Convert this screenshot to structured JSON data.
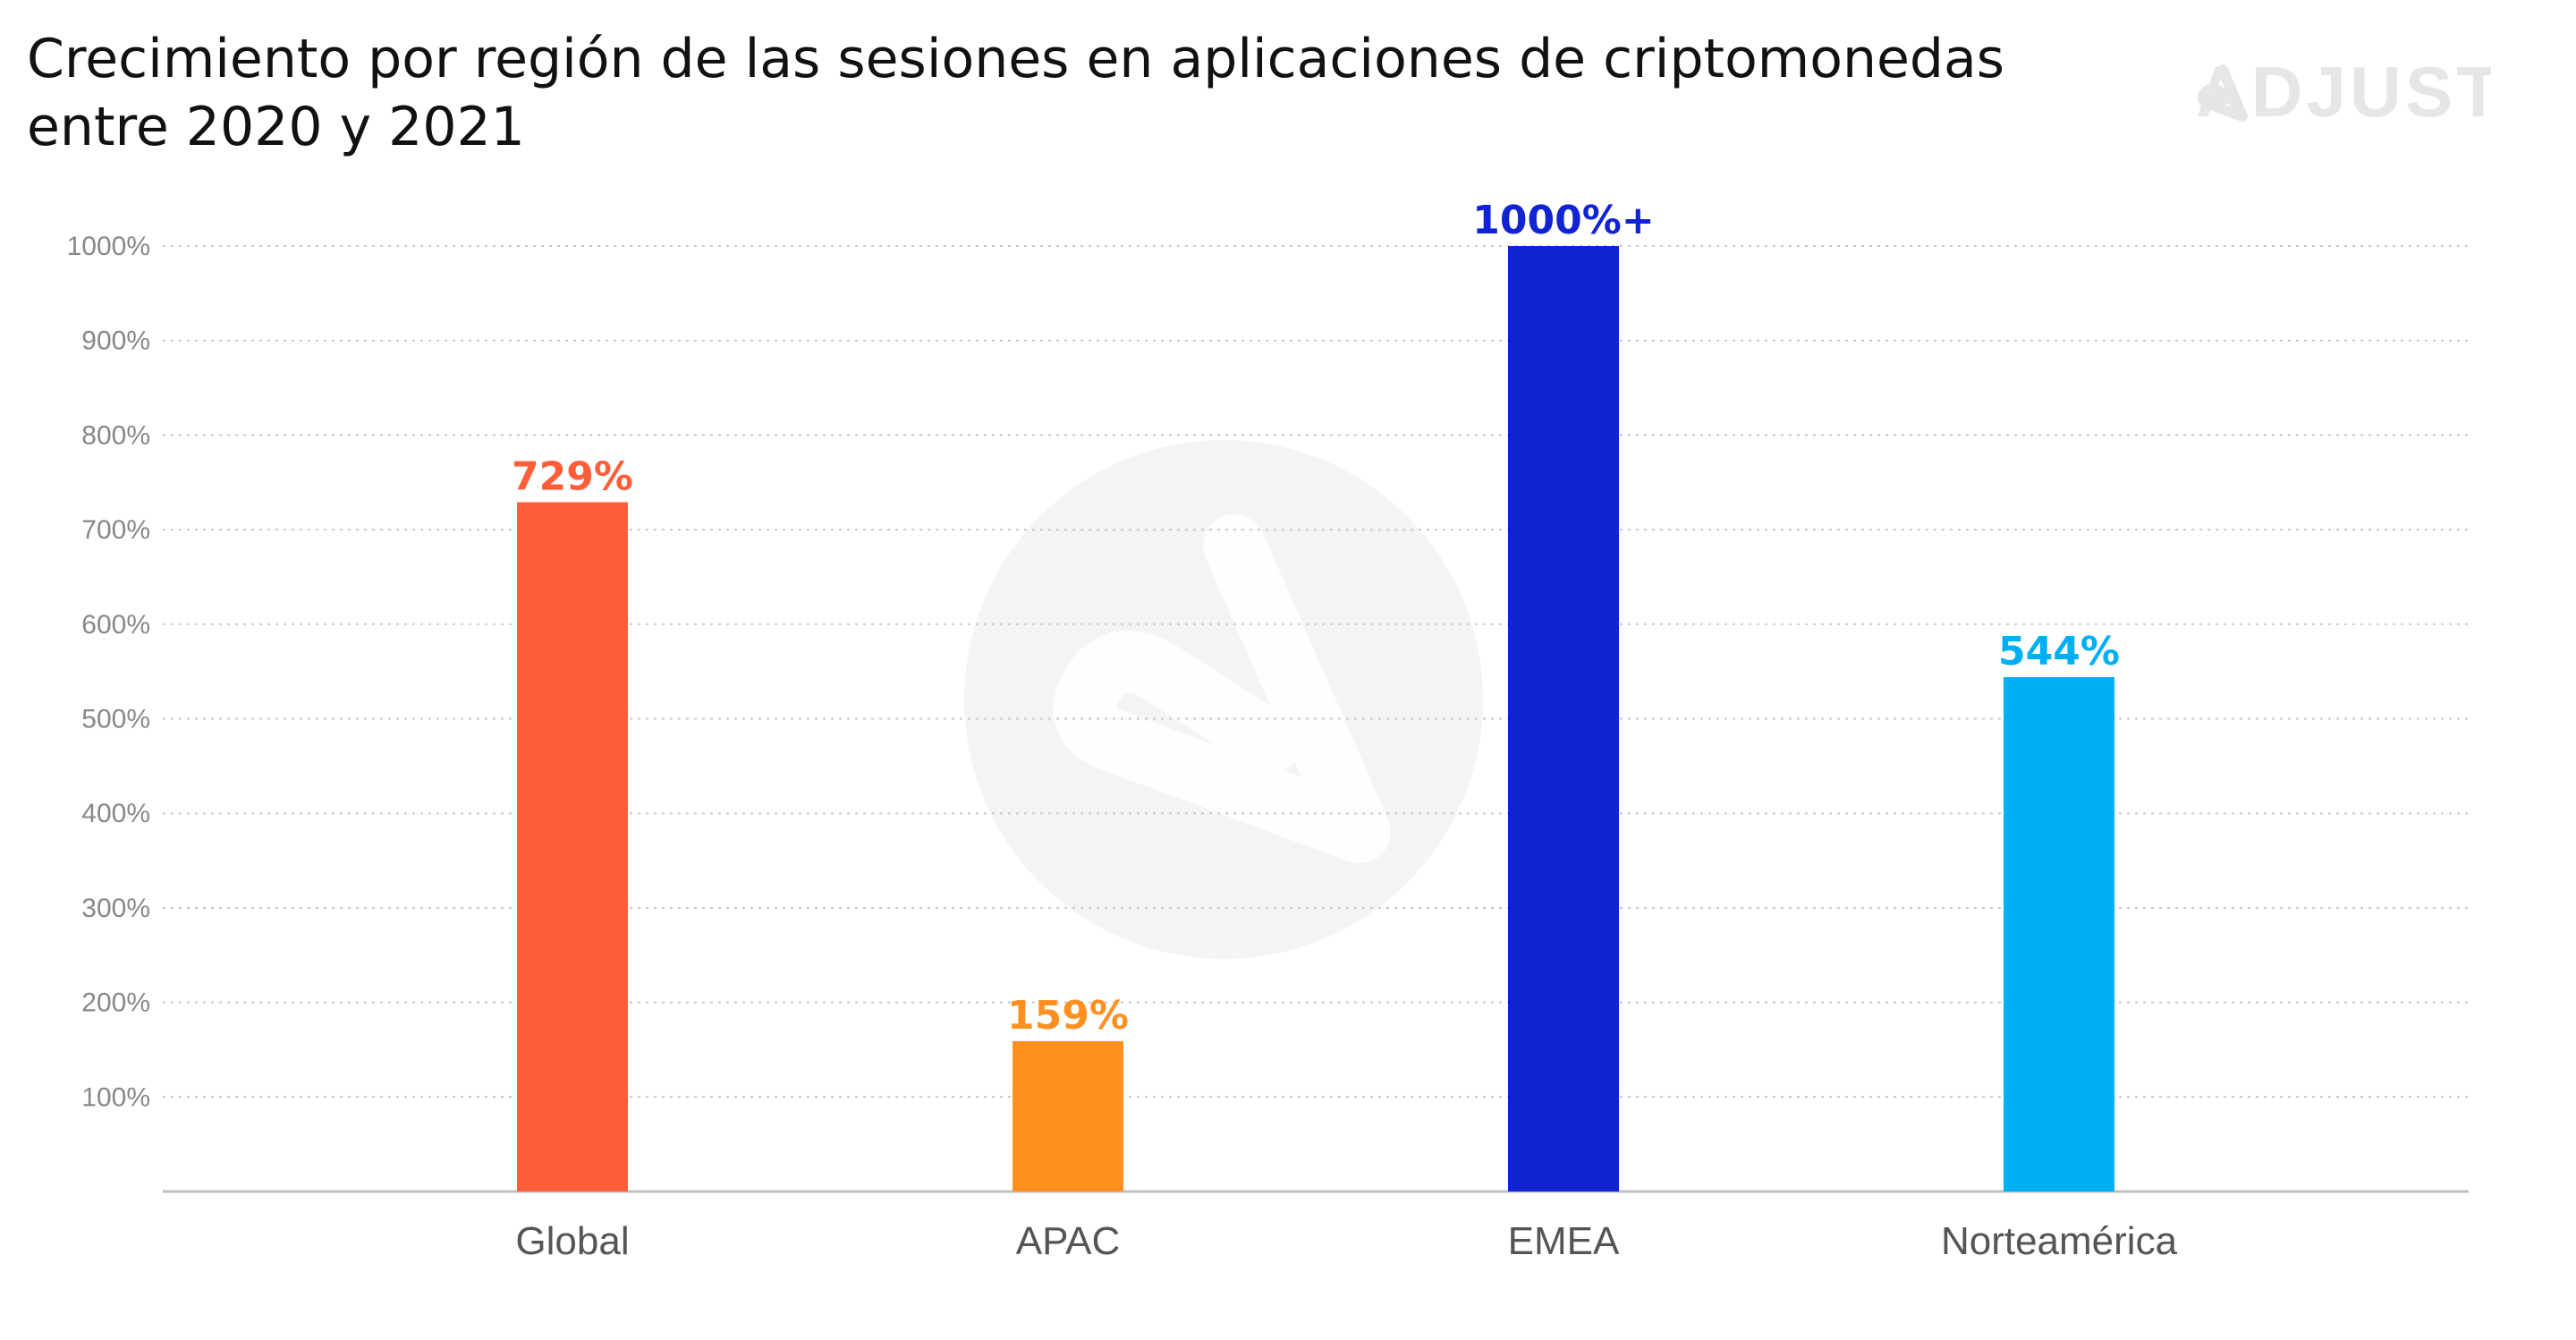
{
  "title": {
    "line1": "Crecimiento por región de las sesiones en aplicaciones de criptomonedas",
    "line2": "entre 2020 y 2021"
  },
  "logo": {
    "text": "ADJUST",
    "icon": "adjust-logo-icon",
    "color": "#e6e6e6"
  },
  "watermark": {
    "icon": "adjust-watermark-icon",
    "color": "#f4f4f4"
  },
  "chart_data": {
    "type": "bar",
    "title": "Crecimiento por región de las sesiones en aplicaciones de criptomonedas entre 2020 y 2021",
    "xlabel": "",
    "ylabel": "",
    "ylim": [
      0,
      1000
    ],
    "y_ticks": [
      100,
      200,
      300,
      400,
      500,
      600,
      700,
      800,
      900,
      1000
    ],
    "y_tick_labels": [
      "100%",
      "200%",
      "300%",
      "400%",
      "500%",
      "600%",
      "700%",
      "800%",
      "900%",
      "1000%"
    ],
    "grid": true,
    "legend": "none",
    "categories": [
      "Global",
      "APAC",
      "EMEA",
      "Norteamérica"
    ],
    "values": [
      729,
      159,
      1000,
      544
    ],
    "data_labels": [
      "729%",
      "159%",
      "1000%+",
      "544%"
    ],
    "colors": [
      "#ff5e39",
      "#ff9020",
      "#1124d3",
      "#00aff3"
    ],
    "category_label_color": "#555555",
    "tick_label_color": "#888888",
    "grid_color": "#c8c8c8",
    "axis_color": "#bfbfbf"
  }
}
